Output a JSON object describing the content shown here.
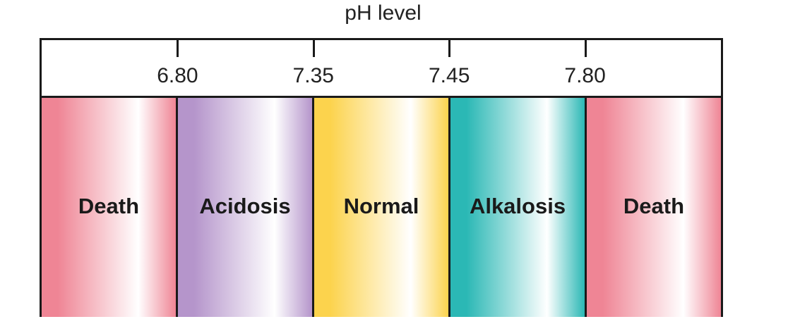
{
  "title": "pH level",
  "ticks": [
    "6.80",
    "7.35",
    "7.45",
    "7.80"
  ],
  "bands": [
    {
      "label": "Death",
      "color": "#ef8595"
    },
    {
      "label": "Acidosis",
      "color": "#b595cb"
    },
    {
      "label": "Normal",
      "color": "#fcd34d"
    },
    {
      "label": "Alkalosis",
      "color": "#2bb8b5"
    },
    {
      "label": "Death",
      "color": "#ef8595"
    }
  ]
}
